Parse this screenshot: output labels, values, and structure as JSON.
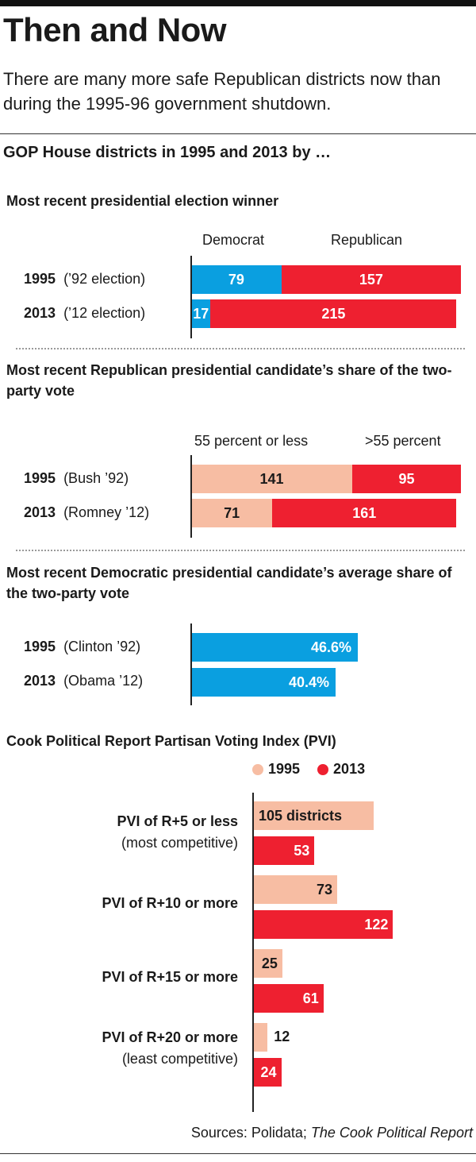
{
  "title": "Then and Now",
  "subtitle": "There are many more safe Republican districts now than during the 1995-96 government shutdown.",
  "chart_heading": "GOP House districts in 1995 and 2013 by …",
  "colors": {
    "dem": "#0a9fe0",
    "rep": "#ee2030",
    "light": "#f7bda3"
  },
  "chart_data": [
    {
      "type": "bar",
      "title": "Most recent presidential election winner",
      "categories": [
        "1995",
        "2013"
      ],
      "category_notes": [
        "(’92 election)",
        "(’12 election)"
      ],
      "stacked": true,
      "series": [
        {
          "name": "Democrat",
          "values": [
            79,
            17
          ]
        },
        {
          "name": "Republican",
          "values": [
            157,
            215
          ]
        }
      ]
    },
    {
      "type": "bar",
      "title": "Most recent Republican presidential candidate’s share of the two-party vote",
      "categories": [
        "1995",
        "2013"
      ],
      "category_notes": [
        "(Bush ’92)",
        "(Romney ’12)"
      ],
      "stacked": true,
      "series": [
        {
          "name": "55 percent or less",
          "values": [
            141,
            71
          ]
        },
        {
          "name": ">55 percent",
          "values": [
            95,
            161
          ]
        }
      ]
    },
    {
      "type": "bar",
      "title": "Most recent Democratic presidential candidate’s average share of the two-party vote",
      "categories": [
        "1995",
        "2013"
      ],
      "category_notes": [
        "(Clinton ’92)",
        "(Obama ’12)"
      ],
      "values": [
        46.6,
        40.4
      ],
      "value_labels": [
        "46.6%",
        "40.4%"
      ]
    },
    {
      "type": "bar",
      "title": "Cook Political Report Partisan Voting Index (PVI)",
      "categories": [
        {
          "main": "PVI of R+5 or less",
          "note": "(most competitive)"
        },
        {
          "main": "PVI of R+10 or more",
          "note": ""
        },
        {
          "main": "PVI of R+15 or more",
          "note": ""
        },
        {
          "main": "PVI of R+20 or more",
          "note": "(least competitive)"
        }
      ],
      "series": [
        {
          "name": "1995",
          "values": [
            105,
            73,
            25,
            12
          ]
        },
        {
          "name": "2013",
          "values": [
            53,
            122,
            61,
            24
          ]
        }
      ],
      "first_value_suffix": " districts"
    }
  ],
  "sources": {
    "prefix": "Sources: Polidata; ",
    "italic": "The Cook Political Report"
  }
}
